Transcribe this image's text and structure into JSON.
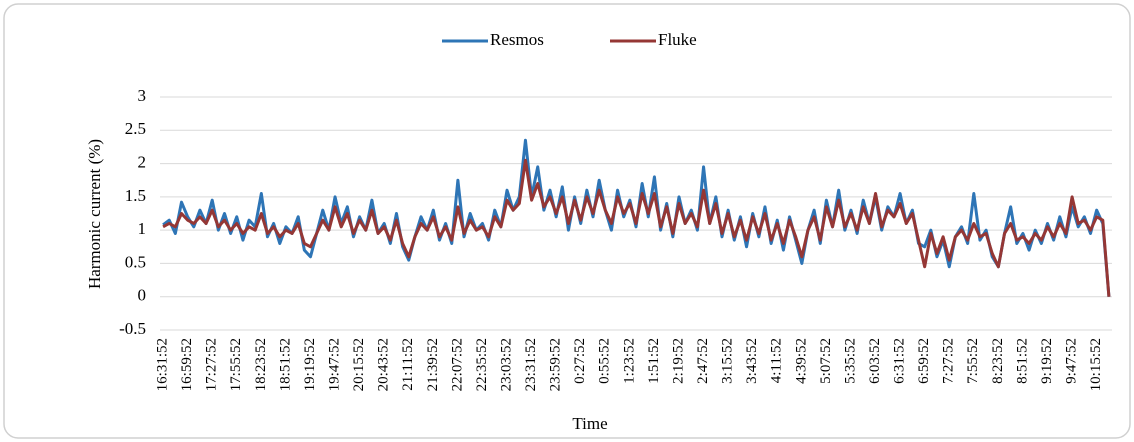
{
  "chart_data": {
    "type": "line",
    "x_label": "Time",
    "y_label": "Harmonic current (%)",
    "categories": [
      "16:31:52",
      null,
      null,
      null,
      "16:59:52",
      null,
      null,
      null,
      "17:27:52",
      null,
      null,
      null,
      "17:55:52",
      null,
      null,
      null,
      "18:23:52",
      null,
      null,
      null,
      "18:51:52",
      null,
      null,
      null,
      "19:19:52",
      null,
      null,
      null,
      "19:47:52",
      null,
      null,
      null,
      "20:15:52",
      null,
      null,
      null,
      "20:43:52",
      null,
      null,
      null,
      "21:11:52",
      null,
      null,
      null,
      "21:39:52",
      null,
      null,
      null,
      "22:07:52",
      null,
      null,
      null,
      "22:35:52",
      null,
      null,
      null,
      "23:03:52",
      null,
      null,
      null,
      "23:31:52",
      null,
      null,
      null,
      "23:59:52",
      null,
      null,
      null,
      "0:27:52",
      null,
      null,
      null,
      "0:55:52",
      null,
      null,
      null,
      "1:23:52",
      null,
      null,
      null,
      "1:51:52",
      null,
      null,
      null,
      "2:19:52",
      null,
      null,
      null,
      "2:47:52",
      null,
      null,
      null,
      "3:15:52",
      null,
      null,
      null,
      "3:43:52",
      null,
      null,
      null,
      "4:11:52",
      null,
      null,
      null,
      "4:39:52",
      null,
      null,
      null,
      "5:07:52",
      null,
      null,
      null,
      "5:35:52",
      null,
      null,
      null,
      "6:03:52",
      null,
      null,
      null,
      "6:31:52",
      null,
      null,
      null,
      "6:59:52",
      null,
      null,
      null,
      "7:27:52",
      null,
      null,
      null,
      "7:55:52",
      null,
      null,
      null,
      "8:23:52",
      null,
      null,
      null,
      "8:51:52",
      null,
      null,
      null,
      "9:19:52",
      null,
      null,
      null,
      "9:47:52",
      null,
      null,
      null,
      "10:15:52",
      null,
      null
    ],
    "series": [
      {
        "name": "Resmos",
        "color": "#2e75b6",
        "values": [
          1.08,
          1.15,
          0.95,
          1.42,
          1.2,
          1.05,
          1.3,
          1.1,
          1.45,
          1.0,
          1.25,
          0.95,
          1.2,
          0.85,
          1.15,
          1.05,
          1.55,
          0.9,
          1.1,
          0.8,
          1.05,
          0.95,
          1.2,
          0.7,
          0.6,
          0.95,
          1.3,
          1.0,
          1.5,
          1.1,
          1.35,
          0.9,
          1.2,
          1.0,
          1.45,
          0.95,
          1.1,
          0.8,
          1.25,
          0.75,
          0.55,
          0.9,
          1.2,
          1.0,
          1.3,
          0.85,
          1.1,
          0.8,
          1.75,
          0.9,
          1.25,
          1.0,
          1.1,
          0.85,
          1.3,
          1.05,
          1.6,
          1.3,
          1.5,
          2.35,
          1.5,
          1.95,
          1.3,
          1.6,
          1.2,
          1.65,
          1.0,
          1.5,
          1.1,
          1.6,
          1.2,
          1.75,
          1.3,
          1.0,
          1.6,
          1.2,
          1.45,
          1.05,
          1.7,
          1.2,
          1.8,
          1.0,
          1.4,
          0.9,
          1.5,
          1.1,
          1.3,
          1.0,
          1.95,
          1.1,
          1.5,
          0.9,
          1.3,
          0.85,
          1.2,
          0.75,
          1.25,
          0.9,
          1.35,
          0.8,
          1.15,
          0.7,
          1.2,
          0.85,
          0.5,
          1.0,
          1.3,
          0.8,
          1.45,
          1.05,
          1.6,
          1.0,
          1.3,
          0.95,
          1.45,
          1.1,
          1.5,
          1.0,
          1.35,
          1.2,
          1.55,
          1.1,
          1.3,
          0.8,
          0.75,
          1.0,
          0.6,
          0.85,
          0.45,
          0.9,
          1.05,
          0.8,
          1.55,
          0.85,
          1.0,
          0.6,
          0.45,
          0.95,
          1.35,
          0.8,
          0.95,
          0.7,
          1.0,
          0.8,
          1.1,
          0.85,
          1.2,
          0.9,
          1.35,
          1.05,
          1.2,
          0.95,
          1.3,
          1.1,
          0
        ]
      },
      {
        "name": "Fluke",
        "color": "#953735",
        "values": [
          1.05,
          1.1,
          1.05,
          1.25,
          1.15,
          1.1,
          1.2,
          1.1,
          1.3,
          1.05,
          1.15,
          1.0,
          1.1,
          0.95,
          1.05,
          1.0,
          1.25,
          0.95,
          1.05,
          0.9,
          1.0,
          0.95,
          1.1,
          0.8,
          0.75,
          0.95,
          1.15,
          1.0,
          1.35,
          1.05,
          1.25,
          0.95,
          1.15,
          1.0,
          1.3,
          0.95,
          1.05,
          0.85,
          1.15,
          0.8,
          0.6,
          0.9,
          1.1,
          1.0,
          1.2,
          0.9,
          1.05,
          0.85,
          1.35,
          0.95,
          1.15,
          1.0,
          1.05,
          0.9,
          1.2,
          1.05,
          1.45,
          1.3,
          1.4,
          2.05,
          1.45,
          1.7,
          1.35,
          1.5,
          1.25,
          1.5,
          1.1,
          1.45,
          1.15,
          1.5,
          1.25,
          1.6,
          1.3,
          1.1,
          1.5,
          1.25,
          1.4,
          1.1,
          1.55,
          1.25,
          1.55,
          1.05,
          1.35,
          0.95,
          1.4,
          1.1,
          1.25,
          1.05,
          1.6,
          1.1,
          1.4,
          0.95,
          1.25,
          0.9,
          1.15,
          0.85,
          1.2,
          0.95,
          1.25,
          0.85,
          1.1,
          0.8,
          1.15,
          0.9,
          0.6,
          1.0,
          1.2,
          0.85,
          1.35,
          1.05,
          1.45,
          1.05,
          1.25,
          1.0,
          1.35,
          1.1,
          1.55,
          1.05,
          1.3,
          1.2,
          1.4,
          1.1,
          1.25,
          0.85,
          0.45,
          0.95,
          0.65,
          0.9,
          0.55,
          0.9,
          1.0,
          0.85,
          1.1,
          0.9,
          0.95,
          0.65,
          0.45,
          0.95,
          1.1,
          0.85,
          0.9,
          0.8,
          0.95,
          0.85,
          1.05,
          0.9,
          1.1,
          0.95,
          1.5,
          1.1,
          1.15,
          1.0,
          1.2,
          1.15,
          0
        ]
      }
    ],
    "ylim": [
      -0.5,
      3
    ],
    "yticks": [
      -0.5,
      0,
      0.5,
      1,
      1.5,
      2,
      2.5,
      3
    ],
    "grid": true,
    "legend": "top"
  }
}
